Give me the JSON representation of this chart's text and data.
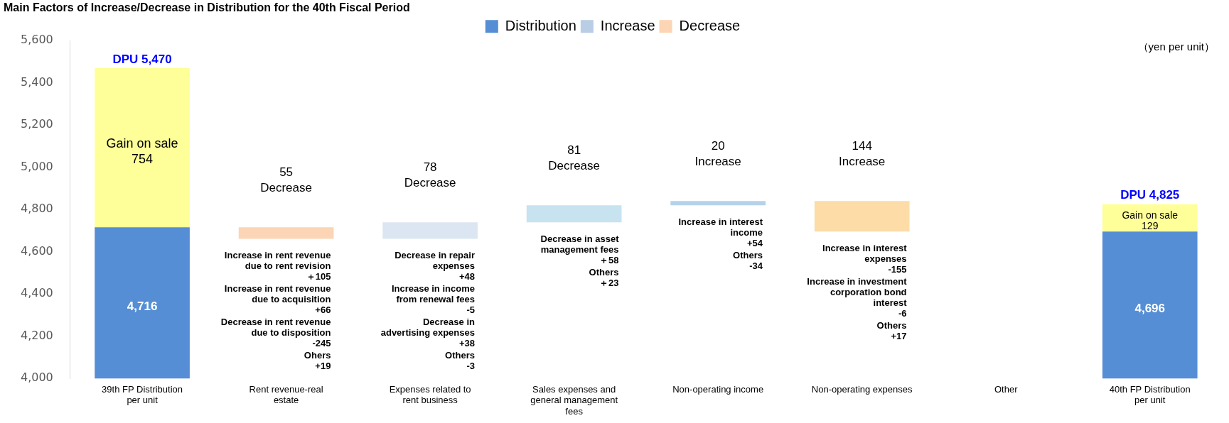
{
  "chart_data": {
    "type": "bar",
    "title": "Main Factors of Increase/Decrease in Distribution for the 40th Fiscal Period",
    "categories": [
      "39th FP Distribution per unit",
      "Rent revenue-real estate",
      "Expenses related to rent business",
      "Sales expenses and general management fees",
      "Non-operating income",
      "Non-operating expenses",
      "Other",
      "40th FP Distribution per unit"
    ],
    "series": [
      {
        "name": "Distribution",
        "color": "#558ed5",
        "values": [
          4716,
          null,
          null,
          null,
          null,
          null,
          null,
          4696
        ],
        "value_labels": [
          "4,716",
          null,
          null,
          null,
          null,
          null,
          null,
          "4,696"
        ]
      },
      {
        "color": "#ffff99",
        "values": [
          754,
          null,
          null,
          null,
          null,
          null,
          null,
          129
        ],
        "base": [
          4716,
          null,
          null,
          null,
          null,
          null,
          null,
          4696
        ],
        "value_labels": [
          "Gain on sale\n754",
          null,
          null,
          null,
          null,
          null,
          null,
          "Gain on sale\n129"
        ]
      },
      {
        "name": "Increase",
        "color": "#b9cde5",
        "colors": [
          "#b9cde5",
          "#b9cde5",
          "#dce6f2",
          "#c6e3ef",
          "#b4d3ea",
          "#b9cde5",
          "#b9cde5",
          "#b9cde5"
        ],
        "values": [
          null,
          null,
          78,
          81,
          20,
          null,
          null,
          null
        ],
        "base": [
          null,
          null,
          4661,
          4739,
          4820,
          null,
          null,
          null
        ],
        "value_labels": [
          null,
          null,
          "78\nDecrease",
          "81\nDecrease",
          "20\nIncrease",
          null,
          null,
          null
        ]
      },
      {
        "name": "Decrease",
        "color": "#fcd5b5",
        "colors": [
          "#fcd5b5",
          "#fbd5b5",
          "#fcd5b5",
          "#fcd5b5",
          "#fcd5b5",
          "#fddca8",
          "#fcd5b5",
          "#fcd5b5"
        ],
        "values": [
          null,
          -55,
          null,
          null,
          null,
          -144,
          null,
          null
        ],
        "base": [
          null,
          4716,
          null,
          null,
          null,
          4840,
          null,
          null
        ],
        "value_labels": [
          null,
          "55\nDecrease",
          null,
          null,
          null,
          "144\nIncrease",
          null,
          null
        ]
      }
    ],
    "totals": [
      "DPU 5,470",
      null,
      null,
      null,
      null,
      null,
      null,
      "DPU 4,825"
    ],
    "ylim": [
      4000,
      5600
    ],
    "yticks": [
      {
        "value": 4000,
        "label": "4,000"
      },
      {
        "value": 4200,
        "label": "4,200"
      },
      {
        "value": 4400,
        "label": "4,400"
      },
      {
        "value": 4600,
        "label": "4,600"
      },
      {
        "value": 4800,
        "label": "4,800"
      },
      {
        "value": 5000,
        "label": "5,000"
      },
      {
        "value": 5200,
        "label": "5,200"
      },
      {
        "value": 5400,
        "label": "5,400"
      },
      {
        "value": 5600,
        "label": "5,600"
      }
    ],
    "grid": false,
    "legend": "top",
    "annotations": [
      "（yen per unit）",
      "Increase in rent revenue\ndue to rent revision\n＋105",
      "Increase in rent revenue\ndue to acquisition\n+66",
      "Decrease in rent revenue\ndue to disposition\n-245",
      "Ohers\n+19",
      "Decrease in repair\nexpenses\n+48",
      "Increase in income\nfrom renewal fees\n-5",
      "Decrease in\nadvertising expenses\n+38",
      "Others\n-3",
      "Decrease in asset\nmanagement fees\n＋58",
      "Others\n＋23",
      "Increase in interest\nincome\n+54",
      "Others\n-34",
      "Increase in interest\nexpenses\n-155",
      "Increase in investment\ncorporation bond\ninterest\n-6",
      "Others\n+17"
    ]
  }
}
